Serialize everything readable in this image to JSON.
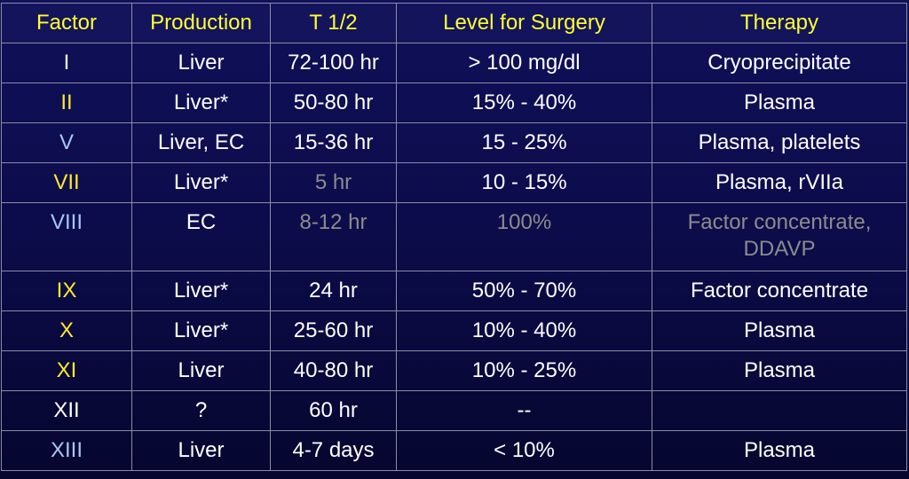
{
  "headers": [
    "Factor",
    "Production",
    "T 1/2",
    "Level for Surgery",
    "Therapy"
  ],
  "rows": [
    {
      "factor": "I",
      "production": "Liver",
      "half_life": "72-100 hr",
      "level": "> 100 mg/dl",
      "therapy": "Cryoprecipitate"
    },
    {
      "factor": "II",
      "production": "Liver*",
      "half_life": "50-80 hr",
      "level": "15% - 40%",
      "therapy": "Plasma"
    },
    {
      "factor": "V",
      "production": "Liver, EC",
      "half_life": "15-36 hr",
      "level": "15 - 25%",
      "therapy": "Plasma, platelets"
    },
    {
      "factor": "VII",
      "production": "Liver*",
      "half_life": "5 hr",
      "level": "10 - 15%",
      "therapy": "Plasma, rVIIa"
    },
    {
      "factor": "VIII",
      "production": "EC",
      "half_life": "8-12 hr",
      "level": "100%",
      "therapy_line1": "Factor concentrate,",
      "therapy_line2": "DDAVP"
    },
    {
      "factor": "IX",
      "production": "Liver*",
      "half_life": "24 hr",
      "level": "50% - 70%",
      "therapy": "Factor concentrate"
    },
    {
      "factor": "X",
      "production": "Liver*",
      "half_life": "25-60 hr",
      "level": "10% - 40%",
      "therapy": "Plasma"
    },
    {
      "factor": "XI",
      "production": "Liver",
      "half_life": "40-80 hr",
      "level": "10% - 25%",
      "therapy": "Plasma"
    },
    {
      "factor": "XII",
      "production": "?",
      "half_life": "60 hr",
      "level": "--",
      "therapy": ""
    },
    {
      "factor": "XIII",
      "production": "Liver",
      "half_life": "4-7 days",
      "level": "< 10%",
      "therapy": "Plasma"
    }
  ],
  "colors": {
    "header_text": "#ffff33",
    "factor_yellow": "#ffea2a",
    "factor_blue": "#a8c8f0",
    "dimmed_text": "#8c8c8c",
    "background": "#10105a",
    "grid": "#8c8ca6"
  }
}
